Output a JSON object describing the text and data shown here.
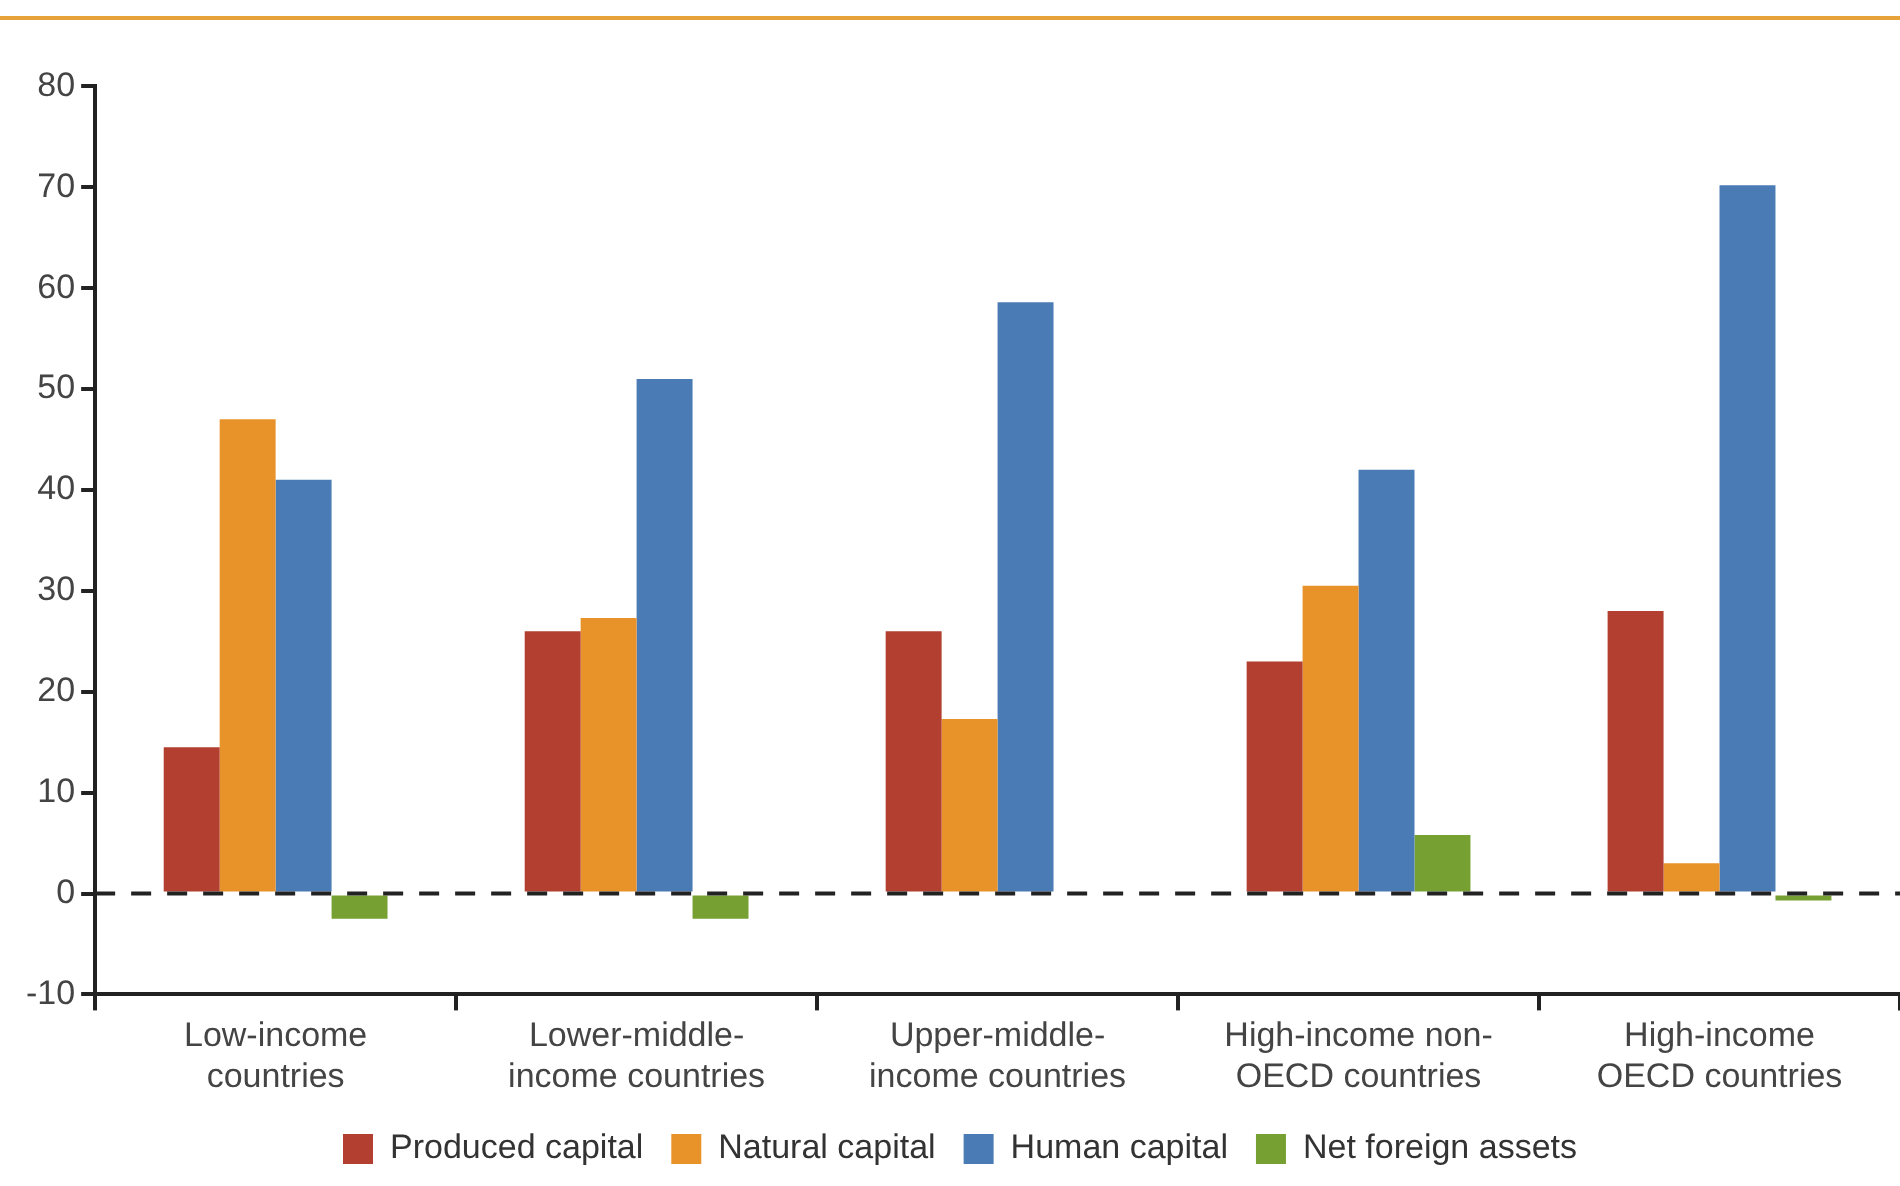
{
  "chart_data": {
    "type": "bar",
    "categories": [
      "Low-income\ncountries",
      "Lower-middle-\nincome countries",
      "Upper-middle-\nincome countries",
      "High-income non-\nOECD countries",
      "High-income\nOECD countries"
    ],
    "series": [
      {
        "name": "Produced capital",
        "color": "#b23f2f",
        "values": [
          14.5,
          26,
          26,
          23,
          28
        ]
      },
      {
        "name": "Natural capital",
        "color": "#e8922a",
        "values": [
          47,
          27.3,
          17.3,
          30.5,
          3
        ]
      },
      {
        "name": "Human capital",
        "color": "#4a7bb5",
        "values": [
          41,
          51,
          58.6,
          42,
          70.2
        ]
      },
      {
        "name": "Net foreign assets",
        "color": "#76a032",
        "values": [
          -2.5,
          -2.5,
          0,
          5.8,
          -0.7
        ]
      }
    ],
    "ylim": [
      -10,
      80
    ],
    "yticks": [
      -10,
      0,
      10,
      20,
      30,
      40,
      50,
      60,
      70,
      80
    ],
    "grid": false,
    "legend": "bottom",
    "ref_lines": [
      {
        "axis": "y",
        "value": 0,
        "line_style": "dashed",
        "color": "#222222"
      }
    ]
  }
}
